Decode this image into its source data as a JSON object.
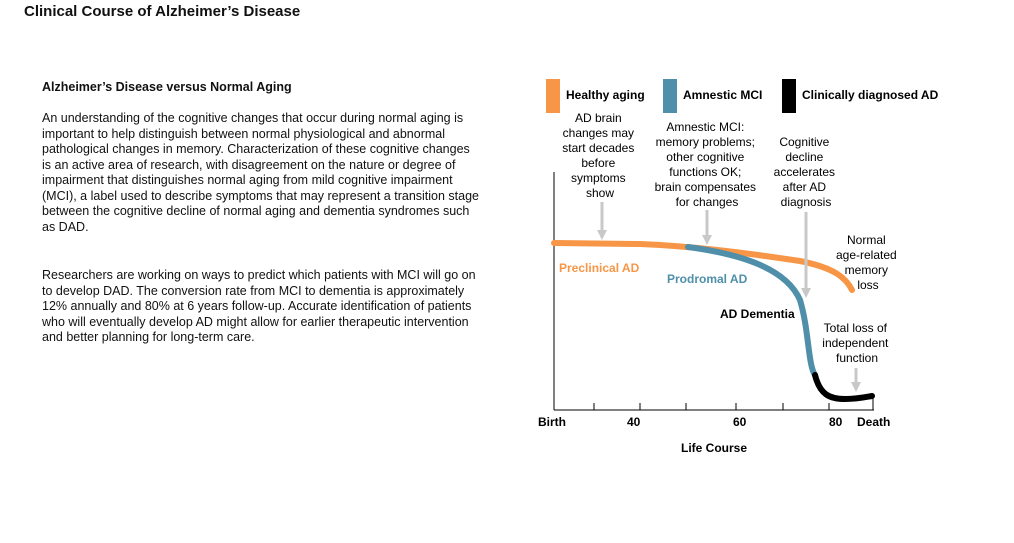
{
  "page": {
    "title": "Clinical Course of Alzheimer’s Disease"
  },
  "article": {
    "heading": "Alzheimer’s Disease versus Normal Aging",
    "paragraphs": [
      "An understanding of the cognitive changes that occur during normal aging is important to help distinguish between normal physiological and abnormal pathological changes in memory. Characterization of these cognitive changes is an active area of research, with disagreement on the nature or degree of impairment that distinguishes normal aging from mild cognitive impairment (MCI), a label used to describe symptoms that may represent a transition stage between the cognitive decline of normal aging and dementia syndromes such as DAD.",
      "Researchers are working on ways to predict which patients with MCI will go on to develop DAD. The conversion rate from MCI to dementia is approximately 12% annually and 80% at 6 years follow-up. Accurate identification of patients who will eventually develop AD might allow for earlier therapeutic intervention and better planning for long-term care."
    ]
  },
  "colors": {
    "healthy": "#f79646",
    "mci": "#4f8fa9",
    "ad": "#000000",
    "arrow": "#c8c8c8",
    "axis": "#000000"
  },
  "legend": [
    {
      "label": "Healthy aging",
      "color": "#f79646"
    },
    {
      "label": "Amnestic MCI",
      "color": "#4f8fa9"
    },
    {
      "label": "Clinically diagnosed AD",
      "color": "#000000"
    }
  ],
  "diagram": {
    "xlabel": "Life Course",
    "ticks": [
      "Birth",
      "40",
      "60",
      "80",
      "Death"
    ],
    "stages": {
      "preclinical": "Preclinical AD",
      "prodromal": "Prodromal AD",
      "dementia": "AD Dementia"
    },
    "annotations": {
      "brain_changes": [
        "AD brain",
        "changes may",
        "start decades",
        "before",
        "symptoms",
        "show"
      ],
      "mci": [
        "Amnestic MCI:",
        "memory problems;",
        "other cognitive",
        "functions OK;",
        "brain compensates",
        "for changes"
      ],
      "decline": [
        "Cognitive",
        "decline",
        "accelerates",
        "after AD",
        "diagnosis"
      ],
      "normal_loss": [
        "Normal",
        "age-related",
        "memory",
        "loss"
      ],
      "total_loss": [
        "Total loss of",
        "independent",
        "function"
      ]
    }
  }
}
